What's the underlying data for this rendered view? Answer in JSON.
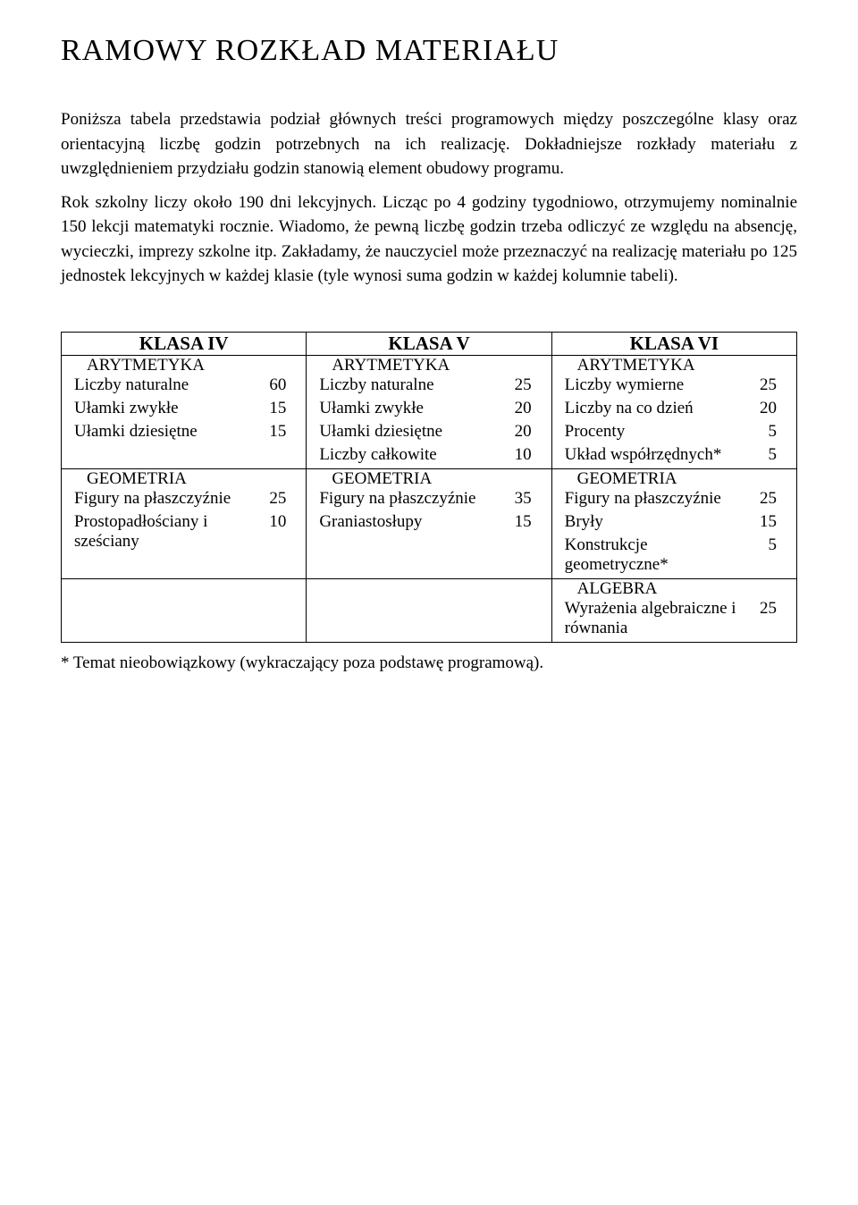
{
  "title": "RAMOWY ROZKŁAD MATERIAŁU",
  "paragraph1": "Poniższa tabela przedstawia podział głównych treści programowych między poszczególne klasy oraz orientacyjną liczbę godzin potrzebnych na ich realizację. Dokładniejsze rozkłady materiału z uwzględnieniem przydziału godzin stanowią element obudowy programu.",
  "paragraph2": "Rok szkolny liczy około 190 dni lekcyjnych. Licząc po 4 godziny tygodniowo, otrzymujemy nominalnie 150 lekcji matematyki rocznie. Wiadomo, że pewną liczbę godzin trzeba odliczyć ze względu na absencję, wycieczki, imprezy szkolne itp. Zakładamy, że nauczyciel może przeznaczyć na realizację materiału po 125 jednostek lekcyjnych w każdej klasie (tyle wynosi suma godzin w każdej kolumnie tabeli).",
  "columns": [
    {
      "header": "KLASA IV",
      "sections": [
        {
          "name": "ARYTMETYKA",
          "items": [
            {
              "label": "Liczby naturalne",
              "value": "60"
            },
            {
              "label": "Ułamki zwykłe",
              "value": "15"
            },
            {
              "label": "Ułamki dziesiętne",
              "value": "15"
            }
          ]
        },
        {
          "name": "GEOMETRIA",
          "items": [
            {
              "label": "Figury na płaszczyźnie",
              "value": "25"
            },
            {
              "label": "Prostopadłościany i sześciany",
              "value": "10"
            }
          ]
        }
      ]
    },
    {
      "header": "KLASA V",
      "sections": [
        {
          "name": "ARYTMETYKA",
          "items": [
            {
              "label": "Liczby naturalne",
              "value": "25"
            },
            {
              "label": "Ułamki zwykłe",
              "value": "20"
            },
            {
              "label": "Ułamki dziesiętne",
              "value": "20"
            },
            {
              "label": "Liczby całkowite",
              "value": "10"
            }
          ]
        },
        {
          "name": "GEOMETRIA",
          "items": [
            {
              "label": "Figury na płaszczyźnie",
              "value": "35"
            },
            {
              "label": "Graniastosłupy",
              "value": "15"
            }
          ]
        }
      ]
    },
    {
      "header": "KLASA VI",
      "sections": [
        {
          "name": "ARYTMETYKA",
          "items": [
            {
              "label": "Liczby wymierne",
              "value": "25"
            },
            {
              "label": "Liczby na co dzień",
              "value": "20"
            },
            {
              "label": "Procenty",
              "value": "5"
            },
            {
              "label": "Układ współrzędnych*",
              "value": "5"
            }
          ]
        },
        {
          "name": "GEOMETRIA",
          "items": [
            {
              "label": "Figury na płaszczyźnie",
              "value": "25"
            },
            {
              "label": "Bryły",
              "value": "15"
            },
            {
              "label": "Konstrukcje geometryczne*",
              "value": "5"
            }
          ]
        },
        {
          "name": "ALGEBRA",
          "items": [
            {
              "label": "Wyrażenia algebraiczne i równania",
              "value": "25"
            }
          ]
        }
      ]
    }
  ],
  "footnote": "* Temat nieobowiązkowy (wykraczający poza podstawę programową)."
}
